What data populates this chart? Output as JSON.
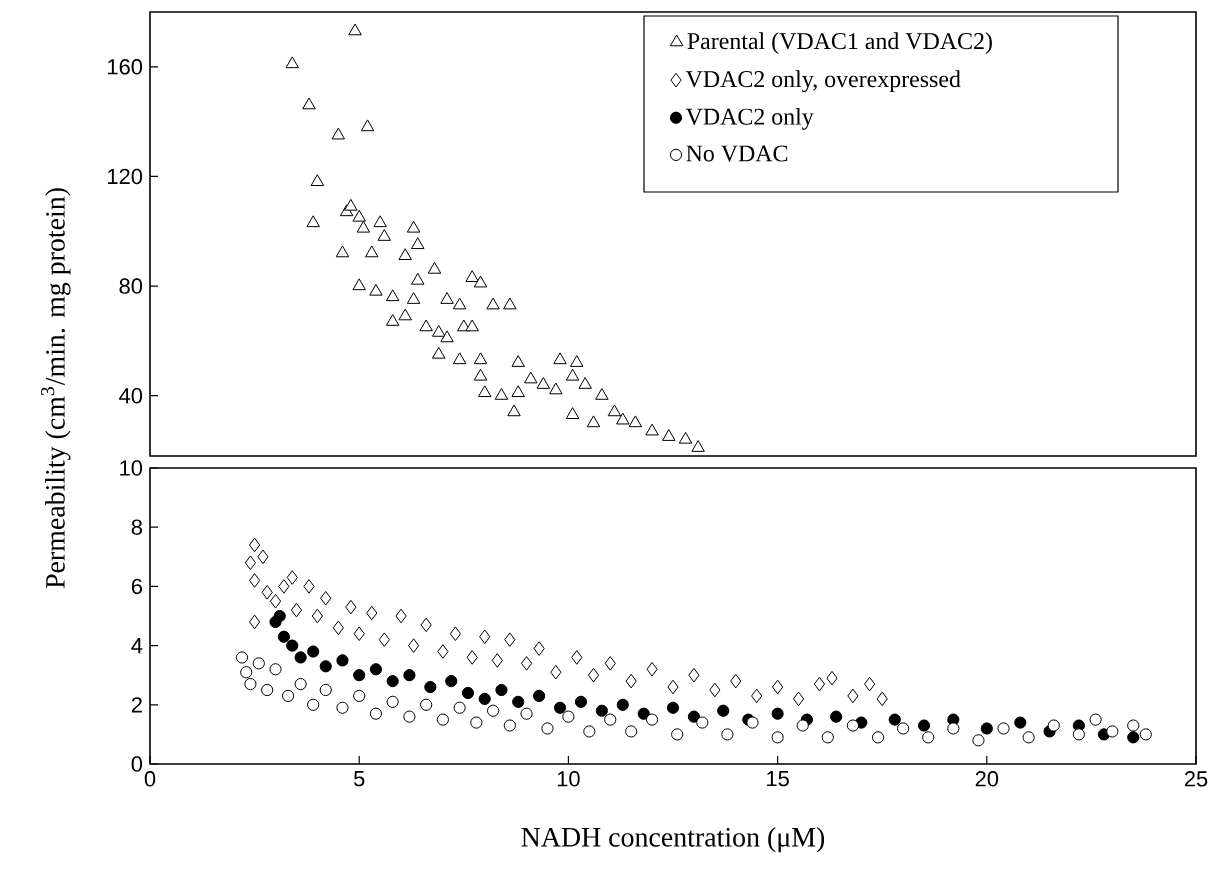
{
  "chart_data": [
    {
      "type": "scatter",
      "xlim": [
        0,
        25
      ],
      "ylim": [
        18,
        180
      ],
      "yticks": [
        40,
        80,
        120,
        160
      ],
      "tick_labels": "y",
      "legend": "top right",
      "series": [
        {
          "name": "Parental (VDAC1 and VDAC2)",
          "marker": "triangle",
          "color": "#ffffff",
          "x": [
            3.4,
            4.9,
            3.8,
            4.5,
            5.2,
            4.0,
            3.9,
            4.7,
            4.8,
            5.0,
            5.1,
            5.5,
            5.6,
            4.6,
            5.3,
            6.1,
            6.3,
            6.4,
            5.0,
            5.4,
            5.8,
            6.3,
            6.4,
            6.8,
            7.1,
            7.4,
            7.7,
            7.9,
            8.2,
            8.6,
            5.8,
            6.1,
            6.6,
            6.9,
            7.1,
            7.5,
            7.7,
            6.9,
            7.4,
            7.9,
            7.9,
            8.0,
            8.4,
            8.7,
            8.8,
            8.8,
            9.1,
            9.4,
            9.7,
            9.8,
            10.2,
            10.1,
            10.4,
            10.1,
            10.6,
            10.8,
            11.1,
            11.3,
            11.6,
            12.0,
            12.4,
            12.8,
            13.1
          ],
          "values": [
            161,
            173,
            146,
            135,
            138,
            118,
            103,
            107,
            109,
            105,
            101,
            103,
            98,
            92,
            92,
            91,
            101,
            95,
            80,
            78,
            76,
            75,
            82,
            86,
            75,
            73,
            83,
            81,
            73,
            73,
            67,
            69,
            65,
            63,
            61,
            65,
            65,
            55,
            53,
            53,
            47,
            41,
            40,
            34,
            52,
            41,
            46,
            44,
            42,
            53,
            52,
            47,
            44,
            33,
            30,
            40,
            34,
            31,
            30,
            27,
            25,
            24,
            21
          ]
        }
      ]
    },
    {
      "type": "scatter",
      "xlabel": "NADH concentration (μM)",
      "ylabel": "Permeability (cm$^{3}$/min. mg protein)",
      "xlim": [
        0,
        25
      ],
      "xticks": [
        0,
        5,
        10,
        15,
        20,
        25
      ],
      "ylim": [
        0,
        10
      ],
      "legend": "top right",
      "yticks": [
        0,
        2,
        4,
        6,
        8,
        10
      ],
      "series": [
        {
          "name": "VDAC2 only, overexpressed",
          "marker": "diamond",
          "color": "#ffffff",
          "x": [
            2.4,
            2.5,
            2.5,
            2.5,
            2.7,
            2.8,
            3.0,
            3.2,
            3.4,
            3.5,
            3.8,
            4.0,
            4.2,
            4.5,
            4.8,
            5.0,
            5.3,
            5.6,
            6.0,
            6.3,
            6.6,
            7.0,
            7.3,
            7.7,
            8.0,
            8.3,
            8.6,
            9.0,
            9.3,
            9.7,
            10.2,
            10.6,
            11.0,
            11.5,
            12.0,
            12.5,
            13.0,
            13.5,
            14.0,
            14.5,
            15.0,
            15.5,
            16.0,
            16.3,
            16.8,
            17.2,
            17.5
          ],
          "values": [
            6.8,
            7.4,
            6.2,
            4.8,
            7.0,
            5.8,
            5.5,
            6.0,
            6.3,
            5.2,
            6.0,
            5.0,
            5.6,
            4.6,
            5.3,
            4.4,
            5.1,
            4.2,
            5.0,
            4.0,
            4.7,
            3.8,
            4.4,
            3.6,
            4.3,
            3.5,
            4.2,
            3.4,
            3.9,
            3.1,
            3.6,
            3.0,
            3.4,
            2.8,
            3.2,
            2.6,
            3.0,
            2.5,
            2.8,
            2.3,
            2.6,
            2.2,
            2.7,
            2.9,
            2.3,
            2.7,
            2.2
          ]
        },
        {
          "name": "VDAC2 only",
          "marker": "circle",
          "color": "#000000",
          "x": [
            3.0,
            3.1,
            3.2,
            3.4,
            3.6,
            3.9,
            4.2,
            4.6,
            5.0,
            5.4,
            5.8,
            6.2,
            6.7,
            7.2,
            7.6,
            8.0,
            8.4,
            8.8,
            9.3,
            9.8,
            10.3,
            10.8,
            11.3,
            11.8,
            12.5,
            13.0,
            13.7,
            14.3,
            15.0,
            15.7,
            16.4,
            17.0,
            17.8,
            18.5,
            19.2,
            20.0,
            20.8,
            21.5,
            22.2,
            22.8,
            23.5
          ],
          "values": [
            4.8,
            5.0,
            4.3,
            4.0,
            3.6,
            3.8,
            3.3,
            3.5,
            3.0,
            3.2,
            2.8,
            3.0,
            2.6,
            2.8,
            2.4,
            2.2,
            2.5,
            2.1,
            2.3,
            1.9,
            2.1,
            1.8,
            2.0,
            1.7,
            1.9,
            1.6,
            1.8,
            1.5,
            1.7,
            1.5,
            1.6,
            1.4,
            1.5,
            1.3,
            1.5,
            1.2,
            1.4,
            1.1,
            1.3,
            1.0,
            0.9
          ]
        },
        {
          "name": "No VDAC",
          "marker": "circle",
          "color": "#ffffff",
          "x": [
            2.2,
            2.3,
            2.4,
            2.6,
            2.8,
            3.0,
            3.3,
            3.6,
            3.9,
            4.2,
            4.6,
            5.0,
            5.4,
            5.8,
            6.2,
            6.6,
            7.0,
            7.4,
            7.8,
            8.2,
            8.6,
            9.0,
            9.5,
            10.0,
            10.5,
            11.0,
            11.5,
            12.0,
            12.6,
            13.2,
            13.8,
            14.4,
            15.0,
            15.6,
            16.2,
            16.8,
            17.4,
            18.0,
            18.6,
            19.2,
            19.8,
            20.4,
            21.0,
            21.6,
            22.2,
            22.6,
            23.0,
            23.5,
            23.8
          ],
          "values": [
            3.6,
            3.1,
            2.7,
            3.4,
            2.5,
            3.2,
            2.3,
            2.7,
            2.0,
            2.5,
            1.9,
            2.3,
            1.7,
            2.1,
            1.6,
            2.0,
            1.5,
            1.9,
            1.4,
            1.8,
            1.3,
            1.7,
            1.2,
            1.6,
            1.1,
            1.5,
            1.1,
            1.5,
            1.0,
            1.4,
            1.0,
            1.4,
            0.9,
            1.3,
            0.9,
            1.3,
            0.9,
            1.2,
            0.9,
            1.2,
            0.8,
            1.2,
            0.9,
            1.3,
            1.0,
            1.5,
            1.1,
            1.3,
            1.0
          ]
        }
      ]
    }
  ]
}
